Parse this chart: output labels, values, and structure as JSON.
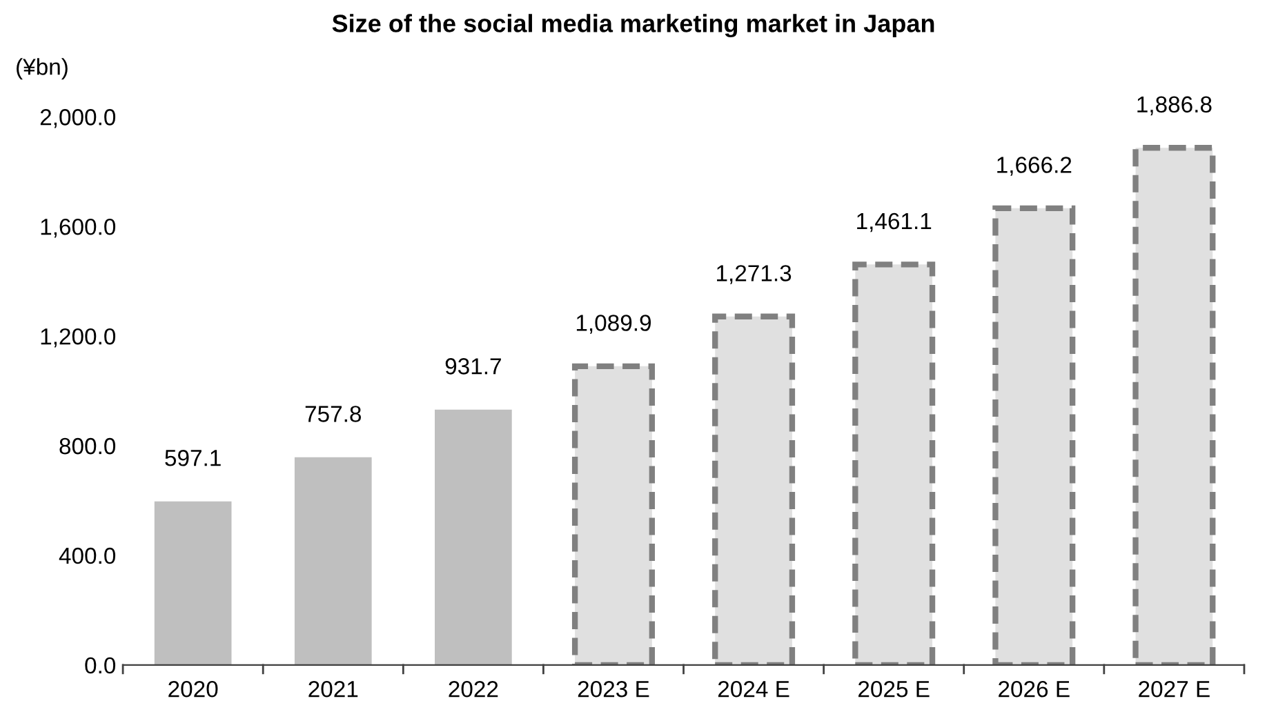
{
  "chart_data": {
    "type": "bar",
    "title": "Size of the social media marketing market in Japan",
    "ylabel": "(¥bn)",
    "categories": [
      "2020",
      "2021",
      "2022",
      "2023 E",
      "2024 E",
      "2025 E",
      "2026 E",
      "2027 E"
    ],
    "series": [
      {
        "color": "#bfbfbf",
        "line_style": "solid",
        "values": [
          597.1,
          757.8,
          931.7,
          null,
          null,
          null,
          null,
          null
        ],
        "value_labels": [
          "597.1",
          "757.8",
          "931.7",
          null,
          null,
          null,
          null,
          null
        ]
      },
      {
        "color": "#e0e0e0",
        "line_style": "dashed",
        "values": [
          null,
          null,
          null,
          1089.9,
          1271.3,
          1461.1,
          1666.2,
          1886.8
        ],
        "value_labels": [
          null,
          null,
          null,
          "1,089.9",
          "1,271.3",
          "1,461.1",
          "1,666.2",
          "1,886.8"
        ]
      }
    ],
    "ylim": [
      0,
      2000
    ],
    "yticks": [
      {
        "value": 0,
        "label": "0.0"
      },
      {
        "value": 400,
        "label": "400.0"
      },
      {
        "value": 800,
        "label": "800.0"
      },
      {
        "value": 1200,
        "label": "1,200.0"
      },
      {
        "value": 1600,
        "label": "1,600.0"
      },
      {
        "value": 2000,
        "label": "2,000.0"
      }
    ],
    "grid": false,
    "legend": false
  }
}
